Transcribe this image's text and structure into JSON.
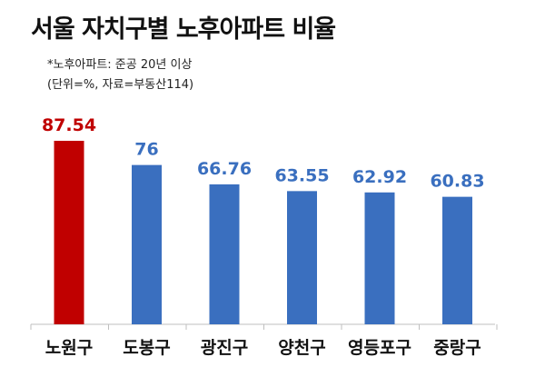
{
  "title": "서울 자치구별 노후아파트 비율",
  "notes": {
    "definition": "*노후아파트: 준공 20년 이상",
    "source": "(단위=%, 자료=부동산114)"
  },
  "colors": {
    "highlight": "#c00000",
    "bar": "#3a6fbf",
    "value_highlight": "#c00000",
    "value": "#3a6fbf"
  },
  "chart_data": {
    "type": "bar",
    "title": "서울 자치구별 노후아파트 비율",
    "xlabel": "",
    "ylabel": "",
    "categories": [
      "노원구",
      "도봉구",
      "광진구",
      "양천구",
      "영등포구",
      "중랑구"
    ],
    "values": [
      87.54,
      76,
      66.76,
      63.55,
      62.92,
      60.83
    ],
    "value_labels": [
      "87.54",
      "76",
      "66.76",
      "63.55",
      "62.92",
      "60.83"
    ],
    "highlight_index": 0,
    "ylim": [
      0,
      100
    ],
    "grid": false,
    "legend": "none"
  }
}
